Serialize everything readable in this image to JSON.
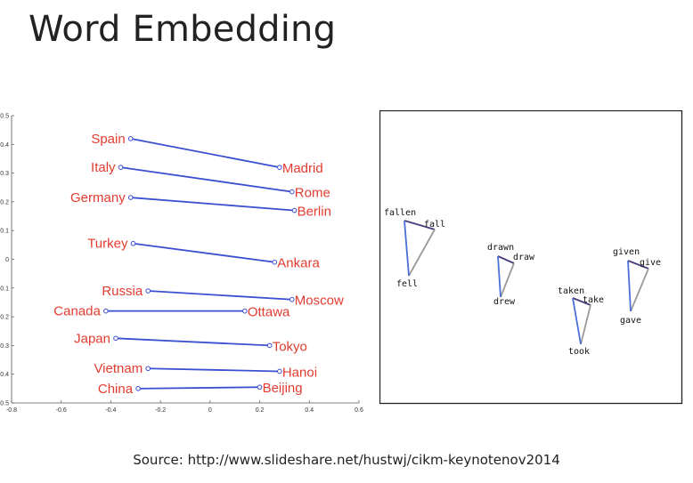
{
  "slide": {
    "title": "Word Embedding",
    "source": "Source: http://www.slideshare.net/hustwj/cikm-keynotenov2014"
  },
  "colors": {
    "country_label": "#e23b2f",
    "line": "#3b4fd1",
    "tri_blue": "#4a6fd8",
    "tri_dark": "#4a3a7a",
    "tri_gray": "#9a9a9a"
  },
  "chart_data": {
    "type": "scatter",
    "x_ticks": [
      "-0.8",
      "-0.6",
      "-0.4",
      "-0.2",
      "0",
      "0.2",
      "0.4",
      "0.6"
    ],
    "y_ticks": [
      "0.5",
      "0.4",
      "0.3",
      "0.2",
      "0.1",
      "0",
      "-0.1",
      "-0.2",
      "-0.3",
      "-0.4",
      "-0.5"
    ],
    "xlim": [
      -0.8,
      0.6
    ],
    "ylim": [
      -0.5,
      0.5
    ],
    "pairs": [
      {
        "country": "Spain",
        "capital": "Madrid",
        "c": [
          -0.32,
          0.42
        ],
        "k": [
          0.28,
          0.32
        ]
      },
      {
        "country": "Italy",
        "capital": "Rome",
        "c": [
          -0.36,
          0.32
        ],
        "k": [
          0.33,
          0.235
        ]
      },
      {
        "country": "Germany",
        "capital": "Berlin",
        "c": [
          -0.32,
          0.215
        ],
        "k": [
          0.34,
          0.17
        ]
      },
      {
        "country": "Turkey",
        "capital": "Ankara",
        "c": [
          -0.31,
          0.055
        ],
        "k": [
          0.26,
          -0.01
        ]
      },
      {
        "country": "Russia",
        "capital": "Moscow",
        "c": [
          -0.25,
          -0.11
        ],
        "k": [
          0.33,
          -0.14
        ]
      },
      {
        "country": "Canada",
        "capital": "Ottawa",
        "c": [
          -0.42,
          -0.18
        ],
        "k": [
          0.14,
          -0.18
        ]
      },
      {
        "country": "Japan",
        "capital": "Tokyo",
        "c": [
          -0.38,
          -0.275
        ],
        "k": [
          0.24,
          -0.3
        ]
      },
      {
        "country": "Vietnam",
        "capital": "Hanoi",
        "c": [
          -0.25,
          -0.38
        ],
        "k": [
          0.28,
          -0.39
        ]
      },
      {
        "country": "China",
        "capital": "Beijing",
        "c": [
          -0.29,
          -0.45
        ],
        "k": [
          0.2,
          -0.445
        ]
      }
    ]
  },
  "verb_triangles": [
    {
      "pp": "fallen",
      "base": "fall",
      "past": "fell"
    },
    {
      "pp": "drawn",
      "base": "draw",
      "past": "drew"
    },
    {
      "pp": "taken",
      "base": "take",
      "past": "took"
    },
    {
      "pp": "given",
      "base": "give",
      "past": "gave"
    }
  ]
}
